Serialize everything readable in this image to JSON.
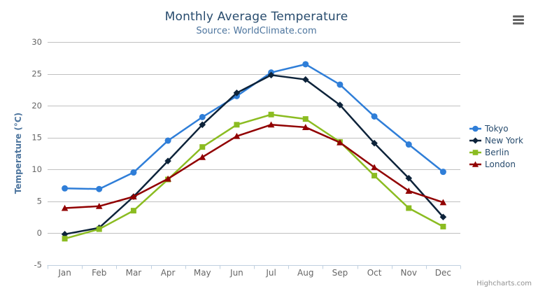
{
  "chart": {
    "credit": "Highcharts.com",
    "export_menu_icon": "hamburger-menu-icon"
  },
  "chart_data": {
    "type": "line",
    "title": "Monthly Average Temperature",
    "subtitle": "Source: WorldClimate.com",
    "categories": [
      "Jan",
      "Feb",
      "Mar",
      "Apr",
      "May",
      "Jun",
      "Jul",
      "Aug",
      "Sep",
      "Oct",
      "Nov",
      "Dec"
    ],
    "xlabel": "",
    "ylabel": "Temperature (°C)",
    "ylim": [
      -5,
      30
    ],
    "ytick_step": 5,
    "grid": true,
    "legend_position": "right",
    "series": [
      {
        "name": "Tokyo",
        "color": "#2f7ed8",
        "marker": "circle",
        "values": [
          7.0,
          6.9,
          9.5,
          14.5,
          18.2,
          21.5,
          25.2,
          26.5,
          23.3,
          18.3,
          13.9,
          9.6
        ]
      },
      {
        "name": "New York",
        "color": "#0d233a",
        "marker": "diamond",
        "values": [
          -0.2,
          0.8,
          5.7,
          11.3,
          17.0,
          22.0,
          24.8,
          24.1,
          20.1,
          14.1,
          8.6,
          2.5
        ]
      },
      {
        "name": "Berlin",
        "color": "#8bbc21",
        "marker": "square",
        "values": [
          -0.9,
          0.6,
          3.5,
          8.4,
          13.5,
          17.0,
          18.6,
          17.9,
          14.3,
          9.0,
          3.9,
          1.0
        ]
      },
      {
        "name": "London",
        "color": "#910000",
        "marker": "triangle",
        "values": [
          3.9,
          4.2,
          5.7,
          8.5,
          11.9,
          15.2,
          17.0,
          16.6,
          14.2,
          10.3,
          6.6,
          4.8
        ]
      }
    ],
    "style": {
      "title_color": "#274b6d",
      "subtitle_color": "#4d759e",
      "axis_label_color": "#666666",
      "axis_title_color": "#4d759e",
      "grid_color": "#c0c0c0",
      "axis_line_color": "#c0d0e0",
      "legend_text_color": "#274b6d",
      "credit_color": "#909090",
      "menu_icon_color": "#666666"
    }
  }
}
